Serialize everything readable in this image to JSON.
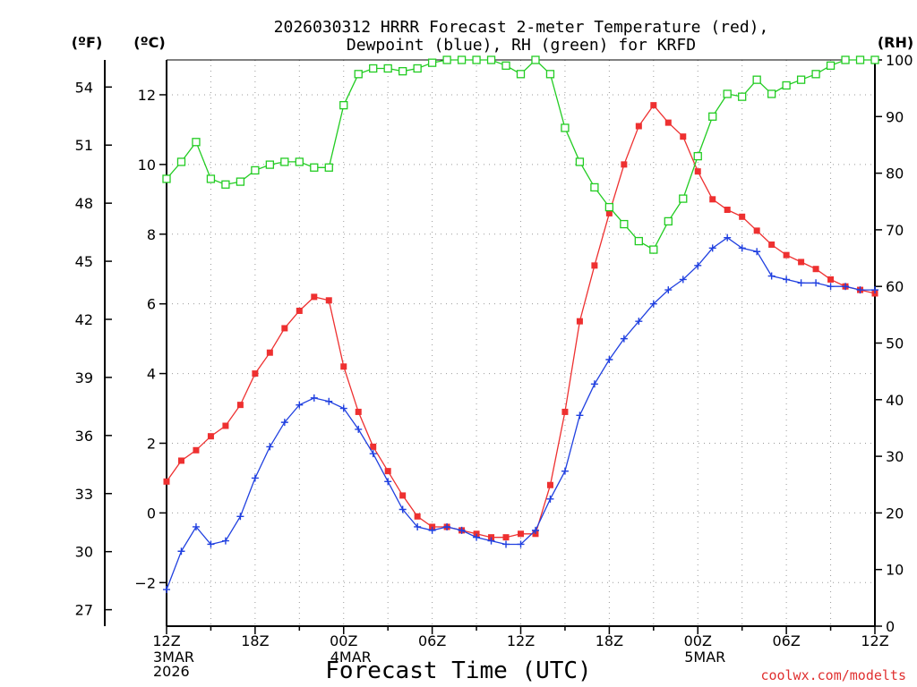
{
  "chart_data": {
    "type": "line",
    "title_line1": "2026030312 HRRR Forecast 2-meter Temperature (red),",
    "title_line2": "Dewpoint (blue), RH (green) for KRFD",
    "left_unit_f": "(ºF)",
    "left_unit_c": "(ºC)",
    "right_unit": "(RH)",
    "xlabel": "Forecast Time (UTC)",
    "credit": "coolwx.com/modelts",
    "x_range": [
      0,
      48
    ],
    "y_range_c": [
      -3.25,
      13.0
    ],
    "y_range_rh": [
      0,
      100
    ],
    "celsius_ticks": [
      "-2",
      "0",
      "2",
      "4",
      "6",
      "8",
      "10",
      "12"
    ],
    "fahrenheit_ticks": [
      "27",
      "30",
      "33",
      "36",
      "39",
      "42",
      "45",
      "48",
      "51",
      "54"
    ],
    "rh_ticks": [
      "0",
      "10",
      "20",
      "30",
      "40",
      "50",
      "60",
      "70",
      "80",
      "90",
      "100"
    ],
    "x_ticks": [
      {
        "hour": 0,
        "label": "12Z",
        "sub": [
          "3MAR",
          "2026"
        ]
      },
      {
        "hour": 6,
        "label": "18Z",
        "sub": []
      },
      {
        "hour": 12,
        "label": "00Z",
        "sub": [
          "4MAR"
        ]
      },
      {
        "hour": 18,
        "label": "06Z",
        "sub": []
      },
      {
        "hour": 24,
        "label": "12Z",
        "sub": []
      },
      {
        "hour": 30,
        "label": "18Z",
        "sub": []
      },
      {
        "hour": 36,
        "label": "00Z",
        "sub": [
          "5MAR"
        ]
      },
      {
        "hour": 42,
        "label": "06Z",
        "sub": []
      },
      {
        "hour": 48,
        "label": "12Z",
        "sub": []
      }
    ],
    "series": [
      {
        "name": "Temperature",
        "unit": "C",
        "color": "#ee3030",
        "marker": "filled-square",
        "values": [
          0.9,
          1.5,
          1.8,
          2.2,
          2.5,
          3.1,
          4.0,
          4.6,
          5.3,
          5.8,
          6.2,
          6.1,
          4.2,
          2.9,
          1.9,
          1.2,
          0.5,
          -0.1,
          -0.4,
          -0.4,
          -0.5,
          -0.6,
          -0.7,
          -0.7,
          -0.6,
          -0.6,
          0.8,
          2.9,
          5.5,
          7.1,
          8.6,
          10.0,
          11.1,
          11.7,
          11.2,
          10.8,
          9.8,
          9.0,
          8.7,
          8.5,
          8.1,
          7.7,
          7.4,
          7.2,
          7.0,
          6.7,
          6.5,
          6.4,
          6.3
        ]
      },
      {
        "name": "Dewpoint",
        "unit": "C",
        "color": "#2040e0",
        "marker": "plus",
        "values": [
          -2.2,
          -1.1,
          -0.4,
          -0.9,
          -0.8,
          -0.1,
          1.0,
          1.9,
          2.6,
          3.1,
          3.3,
          3.2,
          3.0,
          2.4,
          1.7,
          0.9,
          0.1,
          -0.4,
          -0.5,
          -0.4,
          -0.5,
          -0.7,
          -0.8,
          -0.9,
          -0.9,
          -0.5,
          0.4,
          1.2,
          2.8,
          3.7,
          4.4,
          5.0,
          5.5,
          6.0,
          6.4,
          6.7,
          7.1,
          7.6,
          7.9,
          7.6,
          7.5,
          6.8,
          6.7,
          6.6,
          6.6,
          6.5,
          6.5,
          6.4,
          6.4
        ]
      },
      {
        "name": "RH",
        "unit": "%",
        "color": "#22cc22",
        "marker": "open-square",
        "values": [
          79,
          82,
          85.5,
          79,
          78,
          78.5,
          80.5,
          81.5,
          82,
          82,
          81,
          81,
          92,
          97.5,
          98.5,
          98.5,
          98,
          98.5,
          99.5,
          100,
          100.5,
          100,
          100.5,
          99,
          97.5,
          101,
          97.5,
          88,
          82,
          77.5,
          74,
          71,
          68,
          66.5,
          71.5,
          75.5,
          83,
          90,
          94,
          93.5,
          96.5,
          94,
          95.5,
          96.5,
          97.5,
          99,
          100.5,
          101,
          100.5
        ]
      }
    ]
  }
}
